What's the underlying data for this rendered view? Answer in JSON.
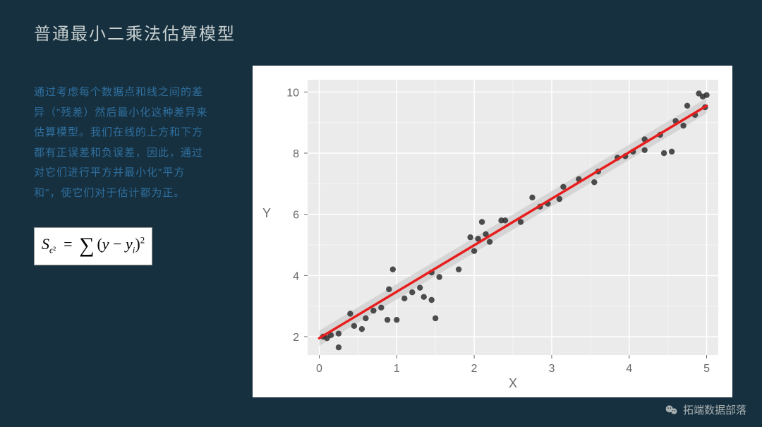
{
  "title": "普通最小二乘法估算模型",
  "description": "通过考虑每个数据点和线之间的差异（\"残差）然后最小化这种差异来估算模型。我们在线的上方和下方都有正误差和负误差，因此，通过对它们进行平方并最小化\"平方和\"，使它们对于估计都为正。",
  "watermark": "拓端数据部落",
  "colors": {
    "page_bg": "#16303f",
    "title_text": "#c8d0d0",
    "desc_text": "#2f6f9f",
    "formula_bg": "#ffffff",
    "chart_bg": "#ffffff"
  },
  "formula_text": "S_{ε²} = Σ(y - y_i)²",
  "chart": {
    "type": "scatter_with_line",
    "background_color": "#ffffff",
    "plot_bg": "#ebebeb",
    "plot_border": "#ffffff",
    "x_label": "X",
    "y_label": "Y",
    "label_fontsize": 18,
    "label_color": "#6a6a6a",
    "tick_fontsize": 16,
    "tick_color": "#6a6a6a",
    "grid_major_color": "#ffffff",
    "grid_minor_color": "#f5f5f5",
    "xlim": [
      -0.15,
      5.15
    ],
    "ylim": [
      1.4,
      10.4
    ],
    "x_ticks": [
      0,
      1,
      2,
      3,
      4,
      5
    ],
    "y_ticks": [
      2,
      4,
      6,
      8,
      10
    ],
    "scatter": {
      "color": "#303030",
      "opacity": 0.85,
      "radius": 4.2,
      "points": [
        [
          0.05,
          2.0
        ],
        [
          0.1,
          1.95
        ],
        [
          0.15,
          2.05
        ],
        [
          0.25,
          1.65
        ],
        [
          0.25,
          2.1
        ],
        [
          0.45,
          2.35
        ],
        [
          0.4,
          2.75
        ],
        [
          0.55,
          2.25
        ],
        [
          0.6,
          2.6
        ],
        [
          0.7,
          2.85
        ],
        [
          0.8,
          2.95
        ],
        [
          0.88,
          2.55
        ],
        [
          0.9,
          3.55
        ],
        [
          0.95,
          4.2
        ],
        [
          1.0,
          2.55
        ],
        [
          1.1,
          3.25
        ],
        [
          1.2,
          3.45
        ],
        [
          1.3,
          3.6
        ],
        [
          1.35,
          3.3
        ],
        [
          1.45,
          3.2
        ],
        [
          1.5,
          2.6
        ],
        [
          1.45,
          4.1
        ],
        [
          1.55,
          3.95
        ],
        [
          1.8,
          4.2
        ],
        [
          1.95,
          5.25
        ],
        [
          2.0,
          4.8
        ],
        [
          2.05,
          5.2
        ],
        [
          2.1,
          5.75
        ],
        [
          2.15,
          5.35
        ],
        [
          2.2,
          5.1
        ],
        [
          2.35,
          5.8
        ],
        [
          2.4,
          5.8
        ],
        [
          2.6,
          5.75
        ],
        [
          2.75,
          6.55
        ],
        [
          2.85,
          6.25
        ],
        [
          2.95,
          6.35
        ],
        [
          3.1,
          6.5
        ],
        [
          3.15,
          6.9
        ],
        [
          3.35,
          7.15
        ],
        [
          3.55,
          7.05
        ],
        [
          3.6,
          7.4
        ],
        [
          3.85,
          7.85
        ],
        [
          3.95,
          7.9
        ],
        [
          4.05,
          8.05
        ],
        [
          4.2,
          8.45
        ],
        [
          4.2,
          8.1
        ],
        [
          4.4,
          8.6
        ],
        [
          4.45,
          8.0
        ],
        [
          4.55,
          8.05
        ],
        [
          4.6,
          9.05
        ],
        [
          4.7,
          8.9
        ],
        [
          4.75,
          9.55
        ],
        [
          4.85,
          9.25
        ],
        [
          4.9,
          9.95
        ],
        [
          4.95,
          9.85
        ],
        [
          5.0,
          9.9
        ],
        [
          4.98,
          9.5
        ]
      ]
    },
    "confidence_band": {
      "color": "#cccccc",
      "opacity": 0.7,
      "half_width_y": 0.25
    },
    "fit_line": {
      "color": "#e81e1e",
      "width": 3.5,
      "x1": 0.0,
      "y1": 1.95,
      "x2": 5.0,
      "y2": 9.55
    }
  }
}
